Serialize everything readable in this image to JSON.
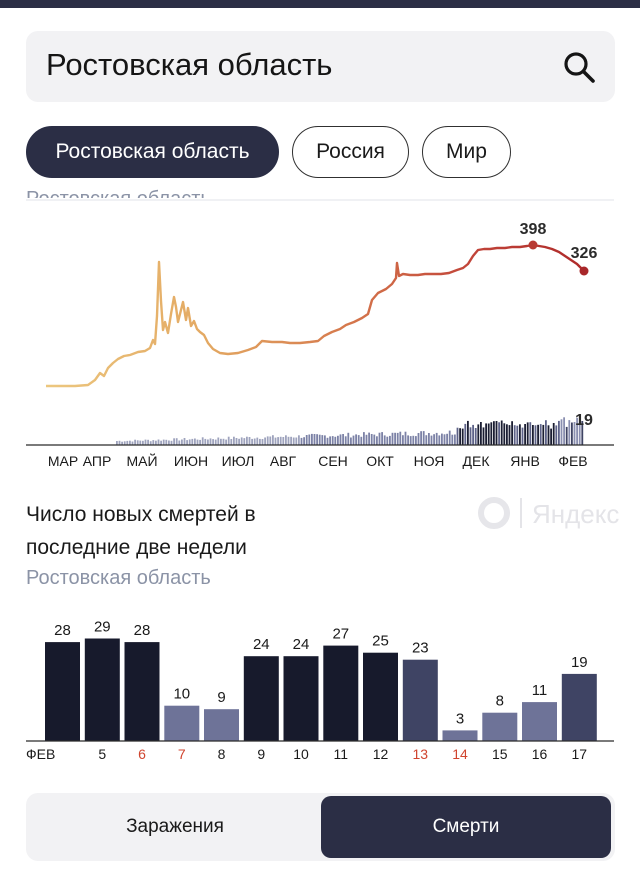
{
  "search": {
    "query": "Ростовская область"
  },
  "region_chips": [
    {
      "label": "Ростовская область",
      "active": true
    },
    {
      "label": "Россия",
      "active": false
    },
    {
      "label": "Мир",
      "active": false
    }
  ],
  "cases_chart": {
    "cut_label": "Ростовская область",
    "peak_label": "398",
    "last_label": "326",
    "deaths_last_label": "19",
    "month_labels": [
      "МАР",
      "АПР",
      "МАЙ",
      "ИЮН",
      "ИЮЛ",
      "АВГ",
      "СЕН",
      "ОКТ",
      "НОЯ",
      "ДЕК",
      "ЯНВ",
      "ФЕВ"
    ]
  },
  "deaths_section": {
    "title": "Число новых смертей в последние две недели",
    "subtitle": "Ростовская область",
    "watermark": "Яндекс"
  },
  "chart_data": {
    "type": "bar",
    "categories": [
      "ФЕВ 4",
      "5",
      "6",
      "7",
      "8",
      "9",
      "10",
      "11",
      "12",
      "13",
      "14",
      "15",
      "16",
      "17"
    ],
    "tick_labels": [
      "ФЕВ",
      "5",
      "6",
      "7",
      "8",
      "9",
      "10",
      "11",
      "12",
      "13",
      "14",
      "15",
      "16",
      "17"
    ],
    "weekend_ticks": [
      "6",
      "7",
      "13",
      "14"
    ],
    "values": [
      28,
      29,
      28,
      10,
      9,
      24,
      24,
      27,
      25,
      23,
      3,
      8,
      11,
      19
    ],
    "bar_colors": [
      "#171a2c",
      "#171a2c",
      "#171a2c",
      "#6e7398",
      "#6e7398",
      "#171a2c",
      "#171a2c",
      "#171a2c",
      "#171a2c",
      "#3f4464",
      "#6e7398",
      "#6e7398",
      "#6e7398",
      "#3f4464"
    ],
    "ylim": [
      0,
      30
    ],
    "colors": {
      "tick": "#1a1a1a",
      "weekend_tick": "#d0452f"
    }
  },
  "toggle": {
    "options": [
      "Заражения",
      "Смерти"
    ],
    "selected": "Смерти"
  },
  "colors": {
    "accent_dark": "#2b2e45",
    "line_start": "#e8c07a",
    "line_end": "#b52a2a"
  }
}
